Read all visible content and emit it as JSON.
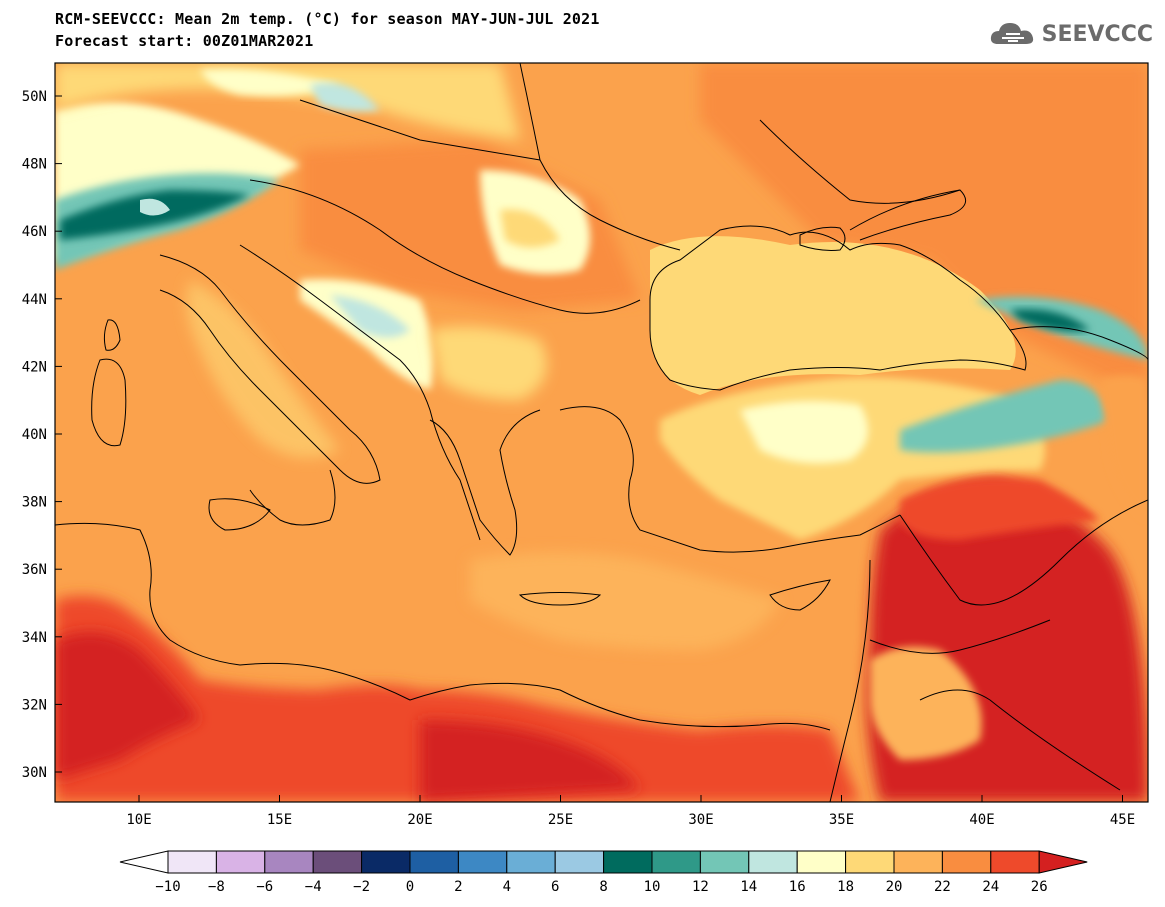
{
  "header": {
    "title": "RCM-SEEVCCC: Mean 2m temp. (°C) for season MAY-JUN-JUL 2021",
    "subtitle": "Forecast start: 00Z01MAR2021",
    "logo_text": "SEEVCCC",
    "logo_icon": "cloud-icon"
  },
  "map": {
    "lat_labels": [
      "50N",
      "48N",
      "46N",
      "44N",
      "42N",
      "40N",
      "38N",
      "36N",
      "34N",
      "32N",
      "30N"
    ],
    "lon_labels": [
      "10E",
      "15E",
      "20E",
      "25E",
      "30E",
      "35E",
      "40E",
      "45E"
    ]
  },
  "legend": {
    "labels": [
      "−10",
      "−8",
      "−6",
      "−4",
      "−2",
      "0",
      "2",
      "4",
      "6",
      "8",
      "10",
      "12",
      "14",
      "16",
      "18",
      "20",
      "22",
      "24",
      "26"
    ],
    "colors": [
      "#ffffff",
      "#f0e6f7",
      "#d9b3e6",
      "#a886c0",
      "#6b4e7a",
      "#0a2a66",
      "#1e5fa3",
      "#3d88c4",
      "#6aaed6",
      "#9bc9e3",
      "#006b5e",
      "#2f9988",
      "#73c6b6",
      "#c0e6e0",
      "#ffffc8",
      "#fed977",
      "#fdb35a",
      "#f98d40",
      "#ee4a2b",
      "#d42020"
    ]
  }
}
